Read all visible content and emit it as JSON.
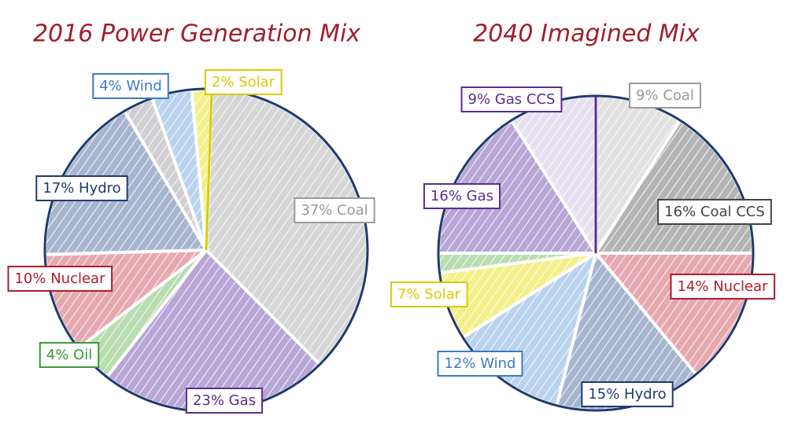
{
  "chart_data": [
    {
      "type": "pie",
      "title": "2016 Power Generation Mix",
      "values": [
        37,
        23,
        4,
        10,
        17,
        3,
        4,
        2
      ],
      "value_labels": [
        "37% Coal",
        "23% Gas",
        "4% Oil",
        "10% Nuclear",
        "17% Hydro",
        null,
        "4% Wind",
        "2% Solar"
      ],
      "colors": [
        "#d6d6d6",
        "#b7a6d6",
        "#b8ddb0",
        "#e7a9b0",
        "#a7b5cf",
        "#cfcfd2",
        "#b9d3ee",
        "#f3ef8a"
      ],
      "label_colors": [
        "#9a9a9a",
        "#5b2d8e",
        "#3a9a3a",
        "#b01c2e",
        "#1f3a6e",
        "#8a8a8a",
        "#3a7cc8",
        "#d8cc00"
      ]
    },
    {
      "type": "pie",
      "title": "2040 Imagined Mix",
      "values": [
        9,
        16,
        14,
        15,
        12,
        7,
        2,
        16,
        9
      ],
      "value_labels": [
        "9% Coal",
        "16% Coal CCS",
        "14% Nuclear",
        "15% Hydro",
        "12% Wind",
        "7% Solar",
        null,
        "16% Gas",
        "9% Gas CCS"
      ],
      "colors": [
        "#e2e2e2",
        "#b4b4b4",
        "#e7a9b0",
        "#a7b5cf",
        "#b9d3ee",
        "#f3ef8a",
        "#b8ddb0",
        "#b7a6d6",
        "#e7e0f1"
      ],
      "label_colors": [
        "#9a9a9a",
        "#444444",
        "#b01c2e",
        "#1f3a6e",
        "#3a7cc8",
        "#d8cc00",
        "#3a9a3a",
        "#5b2d8e",
        "#5b2d8e"
      ]
    }
  ]
}
